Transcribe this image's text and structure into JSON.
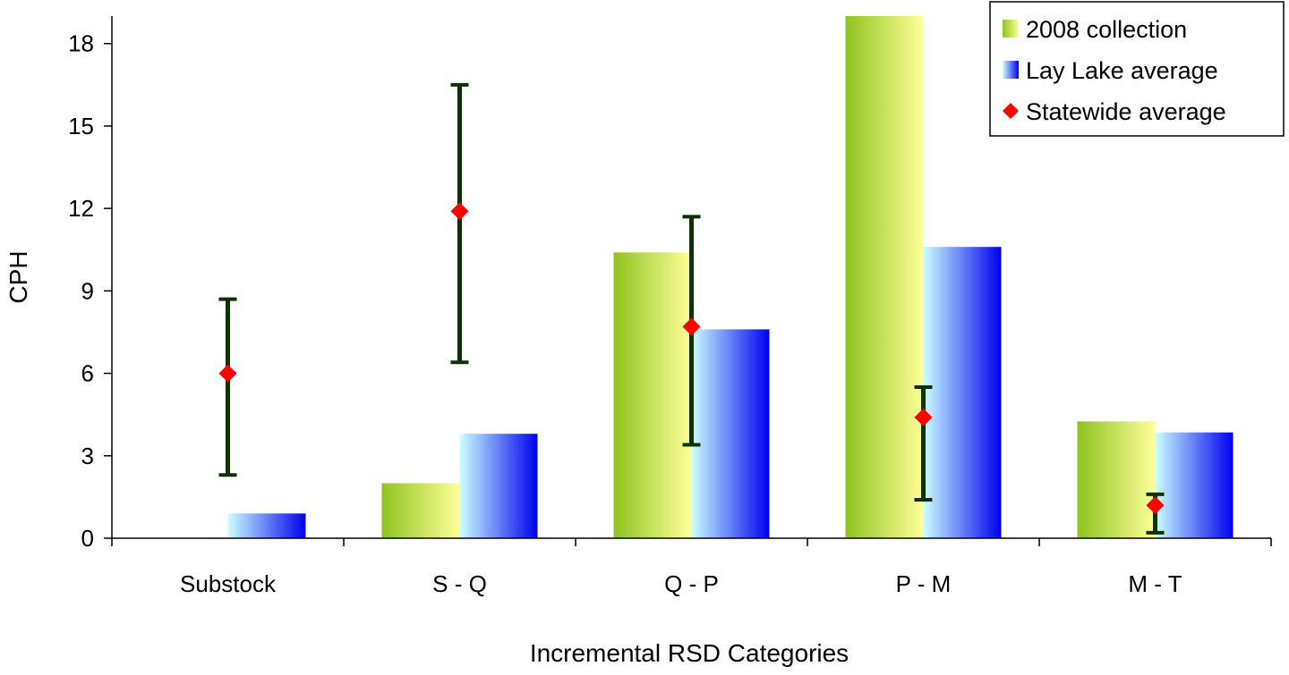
{
  "chart_data": {
    "type": "bar",
    "title": "",
    "xlabel": "Incremental RSD Categories",
    "ylabel": "CPH",
    "categories": [
      "Substock",
      "S - Q",
      "Q - P",
      "P - M",
      "M - T"
    ],
    "ylim": [
      0,
      19
    ],
    "yticks": [
      0,
      3,
      6,
      9,
      12,
      15,
      18
    ],
    "grid": false,
    "legend_position": "top-right",
    "series": [
      {
        "name": "2008 collection",
        "kind": "bar",
        "values": [
          0,
          2.0,
          10.4,
          19.0,
          4.25
        ],
        "colors": [
          "#8fc31f",
          "#ffff99"
        ]
      },
      {
        "name": "Lay Lake average",
        "kind": "bar",
        "values": [
          0.9,
          3.8,
          7.6,
          10.6,
          3.85
        ],
        "colors": [
          "#ccffff",
          "#0000ee"
        ]
      },
      {
        "name": "Statewide average",
        "kind": "point",
        "values": [
          6.0,
          11.9,
          7.7,
          4.4,
          1.2
        ],
        "error_low": [
          2.3,
          6.4,
          3.4,
          1.4,
          0.2
        ],
        "error_high": [
          8.7,
          16.5,
          11.7,
          5.5,
          1.6
        ],
        "color": "#ff0000",
        "error_color": "#0a3300"
      }
    ]
  }
}
